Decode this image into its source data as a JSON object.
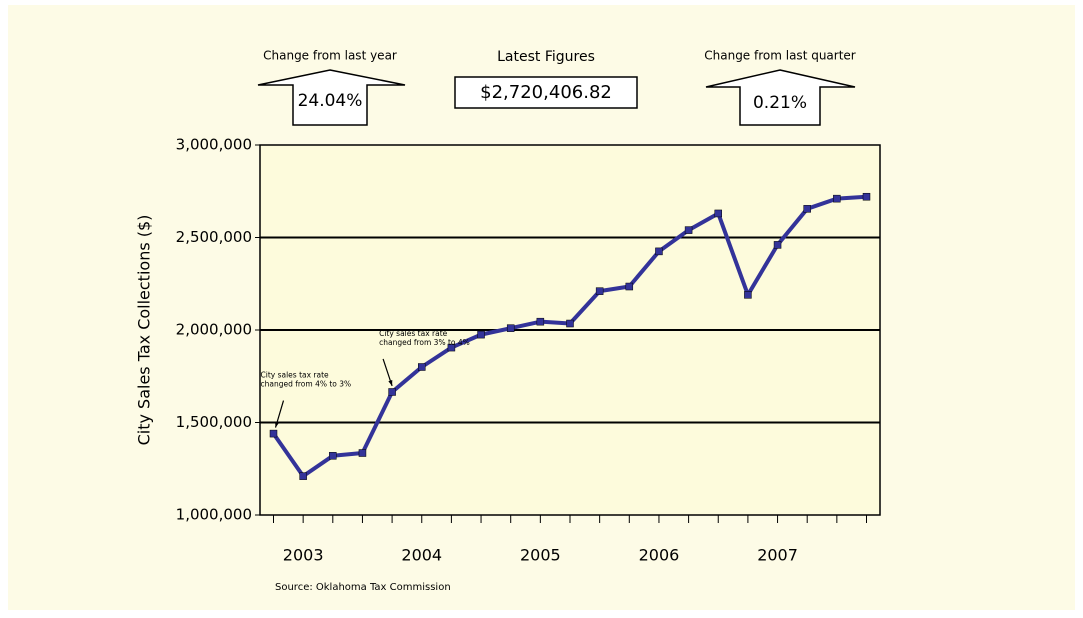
{
  "chart_data": {
    "type": "line",
    "header": [
      {
        "label": "Change from last year",
        "value": "24.04%"
      },
      {
        "label": "Latest Figures",
        "value": "$2,720,406.82"
      },
      {
        "label": "Change from last quarter",
        "value": "0.21%"
      }
    ],
    "y_label": "City Sales Tax Collections ($)",
    "source": "Source: Oklahoma Tax Commission",
    "categories": [
      null,
      "2003",
      null,
      null,
      null,
      "2004",
      null,
      null,
      null,
      "2005",
      null,
      null,
      null,
      "2006",
      null,
      null,
      null,
      "2007",
      null,
      null,
      null
    ],
    "series": [
      {
        "name": "City Sales Tax Collections",
        "color": "#333399",
        "values": [
          1440000,
          1210000,
          1320000,
          1335000,
          1665000,
          1800000,
          1905000,
          1975000,
          2010000,
          2045000,
          2035000,
          2210000,
          2235000,
          2425000,
          2540000,
          2630000,
          2190000,
          2460000,
          2655000,
          2710000,
          2720406.82
        ]
      }
    ],
    "ylim": [
      1000000,
      3000000
    ],
    "yticks": [
      {
        "value": 1000000,
        "label": "1,000,000"
      },
      {
        "value": 1500000,
        "label": "1,500,000"
      },
      {
        "value": 2000000,
        "label": "2,000,000"
      },
      {
        "value": 2500000,
        "label": "2,500,000"
      },
      {
        "value": 3000000,
        "label": "3,000,000"
      }
    ],
    "grid": true,
    "annotations": [
      {
        "lines": [
          "City sales tax rate",
          "changed from 4% to 3%"
        ],
        "index": 0
      },
      {
        "lines": [
          "City sales tax rate",
          "changed from 3% to 4%"
        ],
        "index": 4
      }
    ]
  }
}
